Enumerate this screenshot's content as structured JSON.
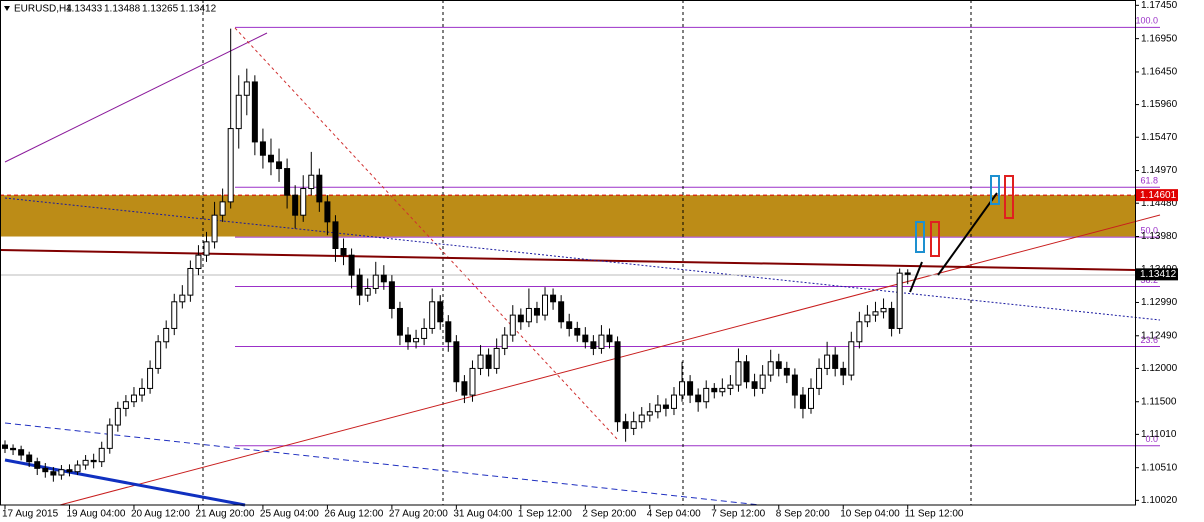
{
  "chart_data": {
    "type": "candlestick",
    "symbol": "EURUSD,H4",
    "categories": [
      "17 Aug 2015",
      null,
      null,
      null,
      null,
      null,
      null,
      null,
      "19 Aug 04:00",
      null,
      null,
      null,
      null,
      null,
      null,
      null,
      "20 Aug 12:00",
      null,
      null,
      null,
      null,
      null,
      null,
      null,
      "21 Aug 20:00",
      null,
      null,
      null,
      null,
      null,
      null,
      null,
      "25 Aug 04:00",
      null,
      null,
      null,
      null,
      null,
      null,
      null,
      "26 Aug 12:00",
      null,
      null,
      null,
      null,
      null,
      null,
      null,
      "27 Aug 20:00",
      null,
      null,
      null,
      null,
      null,
      null,
      null,
      "31 Aug 04:00",
      null,
      null,
      null,
      null,
      null,
      null,
      null,
      "1 Sep 12:00",
      null,
      null,
      null,
      null,
      null,
      null,
      null,
      "2 Sep 20:00",
      null,
      null,
      null,
      null,
      null,
      null,
      null,
      "4 Sep 04:00",
      null,
      null,
      null,
      null,
      null,
      null,
      null,
      "7 Sep 12:00",
      null,
      null,
      null,
      null,
      null,
      null,
      null,
      "8 Sep 20:00",
      null,
      null,
      null,
      null,
      null,
      null,
      null,
      "10 Sep 04:00",
      null,
      null,
      null,
      null,
      null,
      null,
      null,
      "11 Sep 12:00"
    ],
    "open": [
      1.1085,
      1.108,
      1.1078,
      1.107,
      1.106,
      1.105,
      1.1045,
      1.104,
      1.1048,
      1.1045,
      1.1055,
      1.1062,
      1.106,
      1.108,
      1.1115,
      1.114,
      1.115,
      1.116,
      1.117,
      1.12,
      1.124,
      1.126,
      1.13,
      1.131,
      1.135,
      1.137,
      1.139,
      1.143,
      1.145,
      1.156,
      1.161,
      1.163,
      1.154,
      1.152,
      1.151,
      1.15,
      1.146,
      1.143,
      1.147,
      1.149,
      1.145,
      1.142,
      1.138,
      1.137,
      1.134,
      1.131,
      1.132,
      1.134,
      1.133,
      1.129,
      1.125,
      1.124,
      1.1245,
      1.126,
      1.13,
      1.127,
      1.124,
      1.118,
      1.116,
      1.12,
      1.122,
      1.12,
      1.123,
      1.125,
      1.128,
      1.127,
      1.129,
      1.128,
      1.131,
      1.13,
      1.127,
      1.126,
      1.125,
      1.124,
      1.123,
      1.125,
      1.124,
      1.112,
      1.111,
      1.112,
      1.113,
      1.1135,
      1.1145,
      1.114,
      1.116,
      1.118,
      1.116,
      1.115,
      1.117,
      1.1165,
      1.117,
      1.1175,
      1.121,
      1.118,
      1.117,
      1.119,
      1.121,
      1.12,
      1.119,
      1.116,
      1.114,
      1.117,
      1.12,
      1.122,
      1.12,
      1.119,
      1.124,
      1.127,
      1.128,
      1.1285,
      1.129,
      1.126,
      1.13433
    ],
    "high": [
      1.1092,
      1.1086,
      1.1084,
      1.1075,
      1.1066,
      1.1058,
      1.1052,
      1.1055,
      1.1056,
      1.1062,
      1.107,
      1.1072,
      1.109,
      1.1125,
      1.115,
      1.116,
      1.1172,
      1.1185,
      1.1212,
      1.125,
      1.1272,
      1.1312,
      1.1325,
      1.1362,
      1.1385,
      1.1405,
      1.145,
      1.147,
      1.171,
      1.164,
      1.165,
      1.164,
      1.156,
      1.1545,
      1.153,
      1.1515,
      1.1475,
      1.149,
      1.1525,
      1.15,
      1.146,
      1.143,
      1.1395,
      1.138,
      1.135,
      1.1335,
      1.136,
      1.1355,
      1.134,
      1.13,
      1.1262,
      1.1258,
      1.1275,
      1.132,
      1.131,
      1.128,
      1.125,
      1.119,
      1.1212,
      1.1235,
      1.123,
      1.1245,
      1.1262,
      1.1295,
      1.129,
      1.132,
      1.13,
      1.1322,
      1.132,
      1.131,
      1.1282,
      1.127,
      1.1262,
      1.125,
      1.1265,
      1.126,
      1.1248,
      1.1132,
      1.1135,
      1.1142,
      1.1148,
      1.116,
      1.1155,
      1.1172,
      1.121,
      1.119,
      1.117,
      1.1182,
      1.1178,
      1.1185,
      1.119,
      1.123,
      1.122,
      1.1192,
      1.1205,
      1.1228,
      1.1222,
      1.121,
      1.12,
      1.1172,
      1.1185,
      1.1215,
      1.124,
      1.1232,
      1.121,
      1.1255,
      1.1285,
      1.1295,
      1.13,
      1.1305,
      1.13,
      1.135,
      1.13488
    ],
    "low": [
      1.1073,
      1.107,
      1.1062,
      1.1052,
      1.104,
      1.1036,
      1.103,
      1.1033,
      1.1038,
      1.104,
      1.1048,
      1.105,
      1.1052,
      1.1072,
      1.1105,
      1.1128,
      1.1142,
      1.115,
      1.1162,
      1.1192,
      1.123,
      1.125,
      1.129,
      1.13,
      1.134,
      1.136,
      1.138,
      1.142,
      1.144,
      1.153,
      1.158,
      1.152,
      1.15,
      1.149,
      1.148,
      1.144,
      1.141,
      1.142,
      1.146,
      1.1435,
      1.14,
      1.136,
      1.1355,
      1.132,
      1.1295,
      1.13,
      1.1312,
      1.1318,
      1.1275,
      1.1235,
      1.1228,
      1.123,
      1.1235,
      1.1252,
      1.1258,
      1.1225,
      1.1165,
      1.1148,
      1.115,
      1.119,
      1.1188,
      1.1192,
      1.122,
      1.124,
      1.1258,
      1.1262,
      1.1268,
      1.1272,
      1.1288,
      1.126,
      1.1248,
      1.124,
      1.123,
      1.122,
      1.1222,
      1.123,
      1.1105,
      1.109,
      1.11,
      1.111,
      1.112,
      1.1125,
      1.1128,
      1.113,
      1.115,
      1.1148,
      1.1135,
      1.114,
      1.1155,
      1.1158,
      1.116,
      1.1165,
      1.117,
      1.1158,
      1.1162,
      1.118,
      1.1188,
      1.1178,
      1.114,
      1.1125,
      1.1132,
      1.116,
      1.119,
      1.1188,
      1.1175,
      1.1182,
      1.123,
      1.1262,
      1.127,
      1.1275,
      1.1248,
      1.1252,
      1.13265
    ],
    "close": [
      1.108,
      1.1078,
      1.107,
      1.106,
      1.105,
      1.1045,
      1.104,
      1.1048,
      1.1045,
      1.1055,
      1.1062,
      1.106,
      1.108,
      1.1115,
      1.114,
      1.115,
      1.116,
      1.117,
      1.12,
      1.124,
      1.126,
      1.13,
      1.131,
      1.135,
      1.137,
      1.139,
      1.143,
      1.145,
      1.156,
      1.161,
      1.163,
      1.154,
      1.152,
      1.151,
      1.15,
      1.146,
      1.143,
      1.147,
      1.149,
      1.145,
      1.142,
      1.138,
      1.137,
      1.134,
      1.131,
      1.132,
      1.134,
      1.133,
      1.129,
      1.125,
      1.124,
      1.1245,
      1.126,
      1.13,
      1.127,
      1.124,
      1.118,
      1.116,
      1.12,
      1.122,
      1.12,
      1.123,
      1.125,
      1.128,
      1.127,
      1.129,
      1.128,
      1.131,
      1.13,
      1.127,
      1.126,
      1.125,
      1.124,
      1.123,
      1.125,
      1.124,
      1.112,
      1.111,
      1.112,
      1.113,
      1.1135,
      1.1145,
      1.114,
      1.116,
      1.118,
      1.116,
      1.115,
      1.117,
      1.1165,
      1.117,
      1.1175,
      1.121,
      1.118,
      1.117,
      1.119,
      1.121,
      1.12,
      1.119,
      1.116,
      1.114,
      1.117,
      1.12,
      1.122,
      1.12,
      1.119,
      1.124,
      1.127,
      1.128,
      1.1285,
      1.129,
      1.126,
      1.1343,
      1.13412
    ],
    "ylim": [
      1.0995,
      1.1753
    ],
    "yticks": [
      {
        "value": 1.1745,
        "label": "1.17450"
      },
      {
        "value": 1.1695,
        "label": "1.16950"
      },
      {
        "value": 1.1645,
        "label": "1.16450"
      },
      {
        "value": 1.1596,
        "label": "1.15960"
      },
      {
        "value": 1.1547,
        "label": "1.15470"
      },
      {
        "value": 1.1497,
        "label": "1.14970"
      },
      {
        "value": 1.1448,
        "label": "1.14480"
      },
      {
        "value": 1.1398,
        "label": "1.13980"
      },
      {
        "value": 1.1349,
        "label": "1.13490"
      },
      {
        "value": 1.1299,
        "label": "1.12990"
      },
      {
        "value": 1.1249,
        "label": "1.12490"
      },
      {
        "value": 1.12,
        "label": "1.12000"
      },
      {
        "value": 1.115,
        "label": "1.11500"
      },
      {
        "value": 1.1101,
        "label": "1.11010"
      },
      {
        "value": 1.1051,
        "label": "1.10510"
      },
      {
        "value": 1.1002,
        "label": "1.10020"
      }
    ],
    "fib_levels": [
      {
        "label": "100.0",
        "price": 1.1712
      },
      {
        "label": "61.8",
        "price": 1.1472
      },
      {
        "label": "50.0",
        "price": 1.1397
      },
      {
        "label": "38.2",
        "price": 1.1323
      },
      {
        "label": "23.6",
        "price": 1.1233
      },
      {
        "label": "0.0",
        "price": 1.1084
      }
    ],
    "fib_color": "#9b30c8",
    "zone": {
      "low": 1.1398,
      "high": 1.146,
      "color": "#b8860b"
    },
    "price_labels": [
      {
        "value": 1.14601,
        "color": "#e00000"
      },
      {
        "value": 1.13412,
        "color": "#000000"
      }
    ],
    "bull_color": "#ffffff",
    "bear_color": "#000000"
  }
}
